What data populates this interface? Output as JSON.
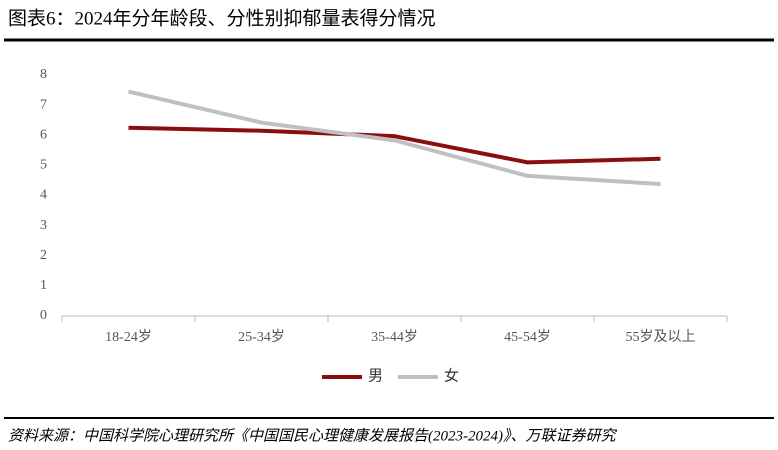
{
  "chart_data": {
    "type": "line",
    "title": "图表6：2024年分年龄段、分性别抑郁量表得分情况",
    "source": "资料来源：中国科学院心理研究所《中国国民心理健康发展报告(2023-2024)》、万联证券研究",
    "categories": [
      "18-24岁",
      "25-34岁",
      "35-44岁",
      "45-54岁",
      "55岁及以上"
    ],
    "series": [
      {
        "name": "男",
        "color": "#8b0e0e",
        "values": [
          6.25,
          6.15,
          5.97,
          5.1,
          5.22
        ]
      },
      {
        "name": "女",
        "color": "#c0c0c0",
        "values": [
          7.45,
          6.42,
          5.83,
          4.65,
          4.38
        ]
      }
    ],
    "ylim": [
      0,
      8
    ],
    "yticks": [
      0,
      1,
      2,
      3,
      4,
      5,
      6,
      7,
      8
    ],
    "grid": false,
    "legend": "bottom"
  }
}
